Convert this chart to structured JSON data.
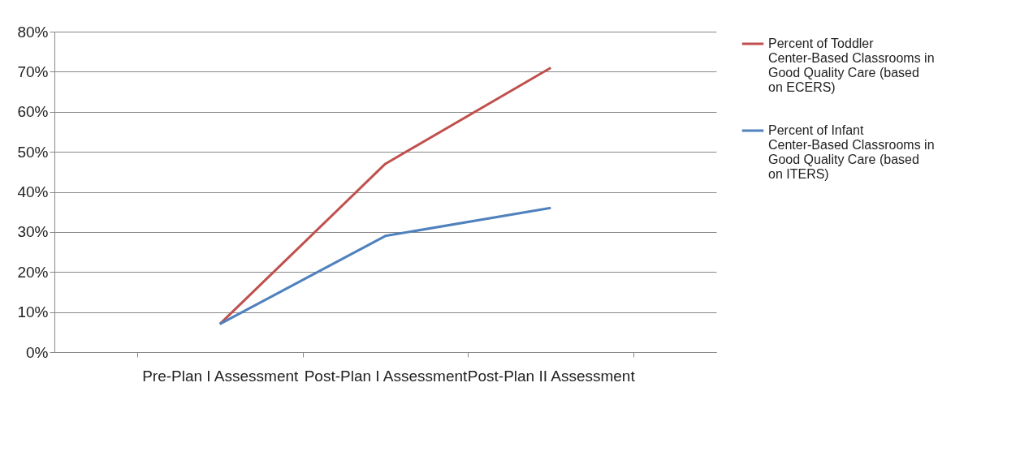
{
  "chart_data": {
    "type": "line",
    "categories": [
      "Pre-Plan I Assessment",
      "Post-Plan I Assessment",
      "Post-Plan II Assessment"
    ],
    "series": [
      {
        "name": "Percent of Toddler Center-Based Classrooms in Good Quality Care (based on ECERS)",
        "color": "#c0504d",
        "values": [
          7,
          47,
          71
        ]
      },
      {
        "name": "Percent of Infant Center-Based Classrooms in Good Quality Care (based on ITERS)",
        "color": "#4f81bd",
        "values": [
          7,
          29,
          36
        ]
      }
    ],
    "ylim": [
      0,
      80
    ],
    "yticks": [
      {
        "value": 0,
        "label": "0%"
      },
      {
        "value": 10,
        "label": "10%"
      },
      {
        "value": 20,
        "label": "20%"
      },
      {
        "value": 30,
        "label": "30%"
      },
      {
        "value": 40,
        "label": "40%"
      },
      {
        "value": 50,
        "label": "50%"
      },
      {
        "value": 60,
        "label": "60%"
      },
      {
        "value": 70,
        "label": "70%"
      },
      {
        "value": 80,
        "label": "80%"
      }
    ],
    "grid": "y",
    "legend": "right",
    "marker": "none",
    "line_style": "solid"
  }
}
